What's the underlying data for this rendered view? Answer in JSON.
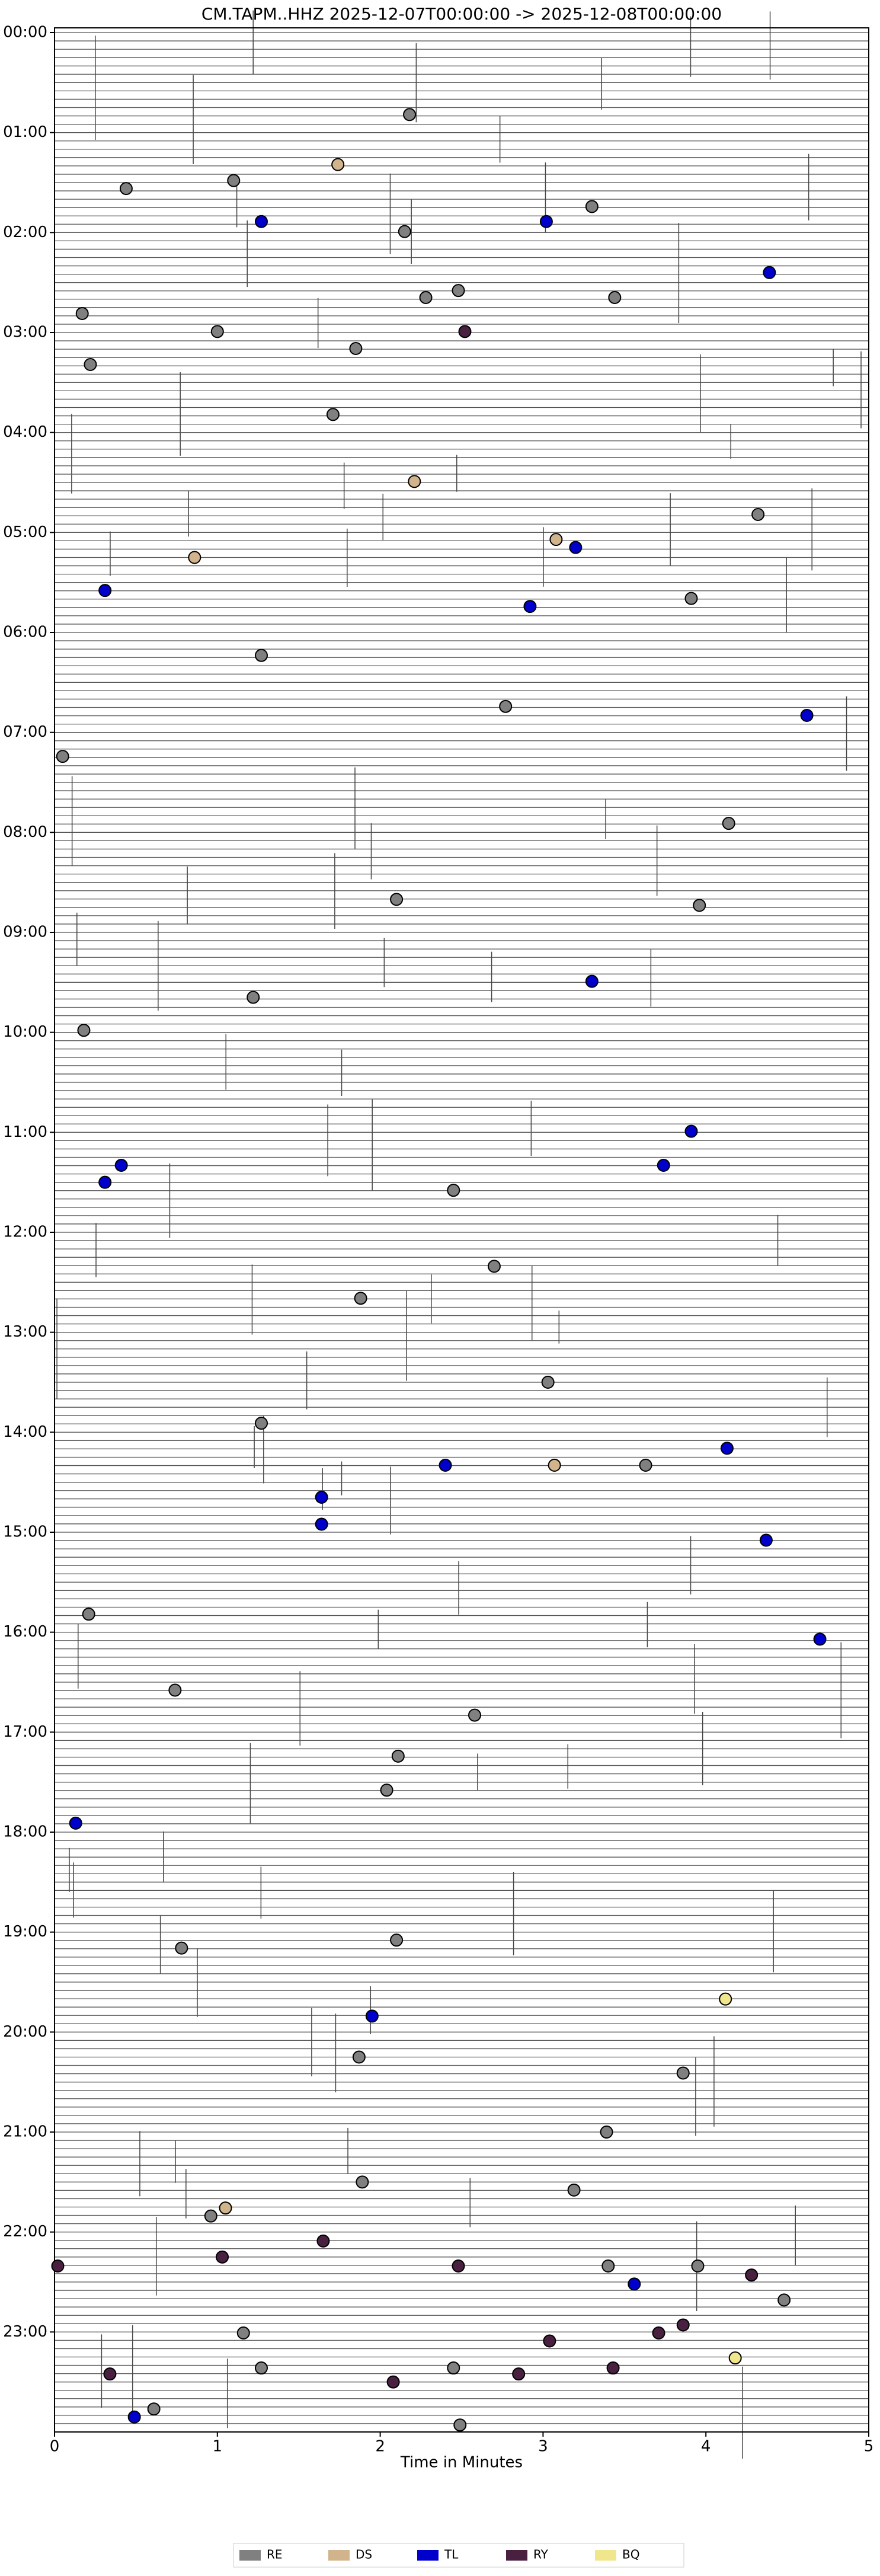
{
  "chart_data": {
    "type": "scatter",
    "title": "CM.TAPM..HHZ  2025-12-07T00:00:00 -> 2025-12-08T00:00:00",
    "x_label": "Time in Minutes",
    "xlim": [
      0,
      5
    ],
    "xticks": [
      0,
      1,
      2,
      3,
      4,
      5
    ],
    "ylim": [
      0,
      24
    ],
    "y_inverted": true,
    "yticks": [
      {
        "value": 0,
        "label": "00:00"
      },
      {
        "value": 1,
        "label": "01:00"
      },
      {
        "value": 2,
        "label": "02:00"
      },
      {
        "value": 3,
        "label": "03:00"
      },
      {
        "value": 4,
        "label": "04:00"
      },
      {
        "value": 5,
        "label": "05:00"
      },
      {
        "value": 6,
        "label": "06:00"
      },
      {
        "value": 7,
        "label": "07:00"
      },
      {
        "value": 8,
        "label": "08:00"
      },
      {
        "value": 9,
        "label": "09:00"
      },
      {
        "value": 10,
        "label": "10:00"
      },
      {
        "value": 11,
        "label": "11:00"
      },
      {
        "value": 12,
        "label": "12:00"
      },
      {
        "value": 13,
        "label": "13:00"
      },
      {
        "value": 14,
        "label": "14:00"
      },
      {
        "value": 15,
        "label": "15:00"
      },
      {
        "value": 16,
        "label": "16:00"
      },
      {
        "value": 17,
        "label": "17:00"
      },
      {
        "value": 18,
        "label": "18:00"
      },
      {
        "value": 19,
        "label": "19:00"
      },
      {
        "value": 20,
        "label": "20:00"
      },
      {
        "value": 21,
        "label": "21:00"
      },
      {
        "value": 22,
        "label": "22:00"
      },
      {
        "value": 23,
        "label": "23:00"
      }
    ],
    "legend": "lower center",
    "series": [
      {
        "name": "RE",
        "color": "#808080",
        "x": [
          2.18,
          1.1,
          0.44,
          3.3,
          2.15,
          2.48,
          2.28,
          3.44,
          0.17,
          1.0,
          1.85,
          0.22,
          1.71,
          4.32,
          3.91,
          1.27,
          2.77,
          0.05,
          4.14,
          2.1,
          3.96,
          1.22,
          0.18,
          2.45,
          2.7,
          1.88,
          3.03,
          1.27,
          3.63,
          0.21,
          0.74,
          2.58,
          2.11,
          2.04,
          0.78,
          2.1,
          1.87,
          3.86,
          3.39,
          1.89,
          3.19,
          0.96,
          3.4,
          3.95,
          4.48,
          1.16,
          1.27,
          2.45,
          0.61,
          2.49
        ],
        "y": [
          0.82,
          1.48,
          1.56,
          1.74,
          1.99,
          2.58,
          2.65,
          2.65,
          2.81,
          2.99,
          3.16,
          3.32,
          3.82,
          4.82,
          5.66,
          6.23,
          6.74,
          7.24,
          7.91,
          8.67,
          8.73,
          9.65,
          9.98,
          11.58,
          12.34,
          12.66,
          13.5,
          13.91,
          14.33,
          15.82,
          16.58,
          16.83,
          17.24,
          17.58,
          19.16,
          19.08,
          20.25,
          20.41,
          21.0,
          21.5,
          21.58,
          21.84,
          22.34,
          22.34,
          22.68,
          23.01,
          23.36,
          23.36,
          23.77,
          23.93
        ]
      },
      {
        "name": "DS",
        "color": "#d2b48c",
        "x": [
          1.74,
          2.21,
          3.08,
          0.86,
          3.07,
          1.05
        ],
        "y": [
          1.32,
          4.49,
          5.07,
          5.25,
          14.33,
          21.76
        ]
      },
      {
        "name": "TL",
        "color": "#0000cd",
        "x": [
          1.27,
          3.02,
          4.39,
          3.2,
          0.31,
          2.92,
          4.62,
          3.3,
          3.91,
          0.41,
          3.74,
          0.31,
          4.13,
          2.4,
          1.64,
          1.64,
          4.37,
          4.7,
          0.13,
          1.95,
          3.56,
          0.49
        ],
        "y": [
          1.89,
          1.89,
          2.4,
          5.15,
          5.58,
          5.74,
          6.83,
          9.49,
          10.99,
          11.33,
          11.33,
          11.5,
          14.16,
          14.33,
          14.65,
          14.92,
          15.08,
          16.07,
          17.91,
          19.84,
          22.52,
          23.85
        ]
      },
      {
        "name": "RY",
        "color": "#4a2040",
        "x": [
          2.52,
          1.65,
          1.03,
          0.02,
          2.48,
          4.28,
          3.86,
          3.71,
          3.04,
          3.43,
          0.34,
          2.85,
          2.08
        ],
        "y": [
          2.99,
          22.09,
          22.25,
          22.34,
          22.34,
          22.43,
          22.93,
          23.01,
          23.09,
          23.36,
          23.42,
          23.42,
          23.5
        ]
      },
      {
        "name": "BQ",
        "color": "#f0e68c",
        "x": [
          4.12,
          4.18
        ],
        "y": [
          19.67,
          23.26
        ]
      }
    ]
  }
}
